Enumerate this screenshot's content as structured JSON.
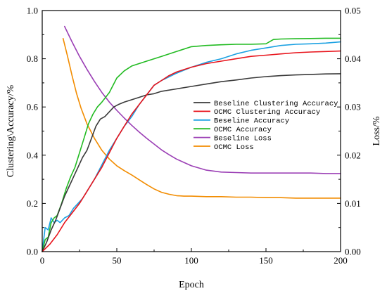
{
  "chart_data": {
    "type": "line",
    "title": "",
    "xlabel": "Epoch",
    "ylabel_left": "Clustering\\Accuracy/%",
    "ylabel_right": "Loss/%",
    "xlim": [
      0,
      200
    ],
    "ylim_left": [
      0,
      1.0
    ],
    "ylim_right": [
      0,
      0.05
    ],
    "x_ticks": [
      "0",
      "50",
      "100",
      "150",
      "200"
    ],
    "y_left_ticks": [
      "0.0",
      "0.2",
      "0.4",
      "0.6",
      "0.8",
      "1.0"
    ],
    "y_right_ticks": [
      "0.00",
      "0.01",
      "0.02",
      "0.03",
      "0.04",
      "0.05"
    ],
    "grid": false,
    "legend_position": "center-right",
    "series": [
      {
        "name": "Beseline Clustering Accuracy",
        "axis": "left",
        "color": "#3a3a3a",
        "x": [
          0,
          3,
          6,
          9,
          12,
          15,
          18,
          21,
          24,
          27,
          30,
          33,
          36,
          39,
          42,
          45,
          48,
          51,
          55,
          60,
          65,
          70,
          75,
          80,
          90,
          100,
          110,
          120,
          130,
          140,
          150,
          160,
          170,
          180,
          190,
          200
        ],
        "y": [
          0.0,
          0.04,
          0.09,
          0.13,
          0.18,
          0.23,
          0.27,
          0.31,
          0.35,
          0.39,
          0.42,
          0.47,
          0.52,
          0.55,
          0.56,
          0.58,
          0.6,
          0.61,
          0.62,
          0.63,
          0.64,
          0.65,
          0.655,
          0.665,
          0.675,
          0.685,
          0.695,
          0.705,
          0.712,
          0.72,
          0.726,
          0.73,
          0.733,
          0.735,
          0.737,
          0.738
        ]
      },
      {
        "name": "OCMC Clustering Accuracy",
        "axis": "left",
        "color": "#e8141c",
        "x": [
          0,
          5,
          10,
          15,
          20,
          25,
          30,
          35,
          40,
          45,
          50,
          55,
          60,
          65,
          70,
          75,
          80,
          85,
          90,
          95,
          100,
          110,
          120,
          130,
          140,
          150,
          160,
          170,
          180,
          190,
          200
        ],
        "y": [
          0.0,
          0.03,
          0.07,
          0.12,
          0.16,
          0.2,
          0.25,
          0.3,
          0.35,
          0.41,
          0.47,
          0.52,
          0.57,
          0.61,
          0.65,
          0.69,
          0.71,
          0.73,
          0.745,
          0.755,
          0.765,
          0.78,
          0.79,
          0.8,
          0.81,
          0.815,
          0.82,
          0.825,
          0.828,
          0.83,
          0.832
        ]
      },
      {
        "name": "Beseline Accuracy",
        "axis": "left",
        "color": "#1ba1e2",
        "x": [
          0,
          2,
          4,
          6,
          8,
          10,
          12,
          15,
          18,
          21,
          24,
          27,
          30,
          35,
          40,
          45,
          50,
          55,
          60,
          65,
          70,
          75,
          80,
          90,
          100,
          110,
          120,
          130,
          140,
          150,
          160,
          170,
          180,
          190,
          200
        ],
        "y": [
          0.0,
          0.1,
          0.09,
          0.14,
          0.12,
          0.13,
          0.12,
          0.14,
          0.15,
          0.18,
          0.2,
          0.22,
          0.25,
          0.3,
          0.36,
          0.42,
          0.47,
          0.52,
          0.56,
          0.61,
          0.65,
          0.69,
          0.71,
          0.74,
          0.765,
          0.785,
          0.8,
          0.82,
          0.835,
          0.845,
          0.855,
          0.86,
          0.862,
          0.865,
          0.87
        ]
      },
      {
        "name": "OCMC Accuracy",
        "axis": "left",
        "color": "#22bb22",
        "x": [
          0,
          2,
          4,
          6,
          8,
          10,
          13,
          16,
          19,
          22,
          25,
          28,
          31,
          34,
          37,
          40,
          45,
          50,
          55,
          60,
          70,
          80,
          90,
          100,
          110,
          120,
          130,
          140,
          150,
          155,
          160,
          170,
          180,
          190,
          200
        ],
        "y": [
          0.0,
          0.05,
          0.06,
          0.12,
          0.14,
          0.15,
          0.2,
          0.26,
          0.31,
          0.35,
          0.41,
          0.47,
          0.53,
          0.57,
          0.6,
          0.62,
          0.66,
          0.72,
          0.75,
          0.77,
          0.79,
          0.81,
          0.83,
          0.85,
          0.855,
          0.858,
          0.86,
          0.86,
          0.862,
          0.88,
          0.882,
          0.883,
          0.884,
          0.885,
          0.885
        ]
      },
      {
        "name": "Beseline Loss",
        "axis": "right",
        "color": "#9b3fb5",
        "x": [
          15,
          20,
          25,
          30,
          35,
          40,
          45,
          50,
          55,
          60,
          65,
          70,
          75,
          80,
          85,
          90,
          95,
          100,
          110,
          120,
          130,
          140,
          150,
          160,
          170,
          180,
          190,
          200
        ],
        "y": [
          0.0467,
          0.0435,
          0.0405,
          0.0378,
          0.0353,
          0.033,
          0.031,
          0.0293,
          0.0277,
          0.0262,
          0.0248,
          0.0235,
          0.0223,
          0.0211,
          0.0201,
          0.0192,
          0.0185,
          0.0178,
          0.0169,
          0.0165,
          0.0164,
          0.0163,
          0.0163,
          0.0163,
          0.0163,
          0.0163,
          0.0162,
          0.0162
        ]
      },
      {
        "name": "OCMC Loss",
        "axis": "right",
        "color": "#f28c00",
        "x": [
          14,
          17,
          20,
          23,
          26,
          30,
          35,
          40,
          45,
          50,
          55,
          60,
          65,
          70,
          75,
          80,
          85,
          90,
          95,
          100,
          110,
          120,
          130,
          140,
          150,
          160,
          170,
          180,
          190,
          200
        ],
        "y": [
          0.0442,
          0.0405,
          0.0365,
          0.0328,
          0.0298,
          0.0265,
          0.0235,
          0.021,
          0.0192,
          0.0178,
          0.0168,
          0.0159,
          0.0149,
          0.0139,
          0.013,
          0.0123,
          0.0119,
          0.0116,
          0.0115,
          0.0115,
          0.0114,
          0.0114,
          0.0113,
          0.0113,
          0.0112,
          0.0112,
          0.0111,
          0.0111,
          0.0111,
          0.0111
        ]
      }
    ]
  }
}
